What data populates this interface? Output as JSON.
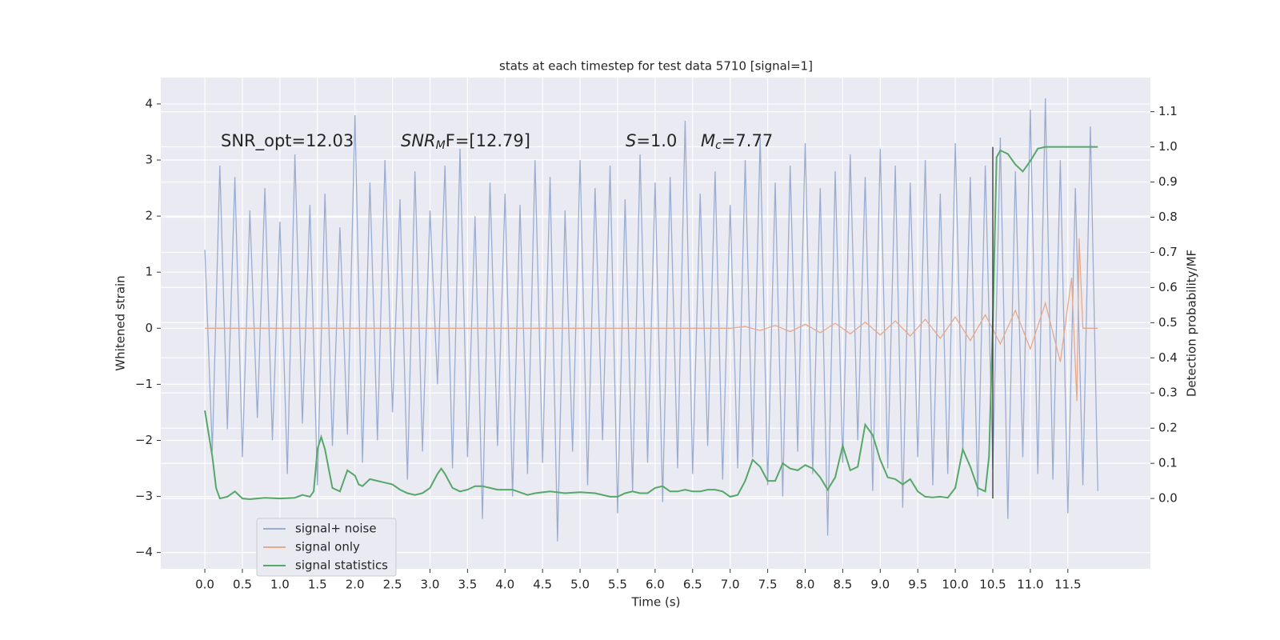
{
  "chart_data": {
    "type": "line",
    "title": "stats at each timestep for test data 5710 [signal=1]",
    "x_label": "Time (s)",
    "y_label": "Whitened strain",
    "y2_label": "Detection probability/MF",
    "annotations": [
      {
        "text": "SNR_opt=12.03"
      },
      {
        "italic": "SNR",
        "sub": "M",
        "text": "F=[12.79]"
      },
      {
        "italic": "S",
        "text": "=1.0"
      },
      {
        "italic": "M",
        "sub": "c",
        "text": "=7.77"
      }
    ],
    "xlim": [
      -0.587,
      12.6
    ],
    "ylim": [
      -4.29,
      4.47
    ],
    "y2lim": [
      -0.2,
      1.197
    ],
    "xticks": [
      {
        "value": 0,
        "label": "0.0"
      },
      0.5,
      {
        "value": 1,
        "label": "1.0"
      },
      1.5,
      {
        "value": 2,
        "label": "2.0"
      },
      2.5,
      {
        "value": 3,
        "label": "3.0"
      },
      3.5,
      {
        "value": 4,
        "label": "4.0"
      },
      4.5,
      {
        "value": 5,
        "label": "5.0"
      },
      5.5,
      {
        "value": 6,
        "label": "6.0"
      },
      6.5,
      {
        "value": 7,
        "label": "7.0"
      },
      7.5,
      {
        "value": 8,
        "label": "8.0"
      },
      8.5,
      {
        "value": 9,
        "label": "9.0"
      },
      9.5,
      {
        "value": 10,
        "label": "10.0"
      },
      10.5,
      {
        "value": 11,
        "label": "11.0"
      },
      11.5
    ],
    "yticks": [
      {
        "value": -4,
        "label": "−4"
      },
      {
        "value": -3,
        "label": "−3"
      },
      {
        "value": -2,
        "label": "−2"
      },
      {
        "value": -1,
        "label": "−1"
      },
      0,
      1,
      2,
      3,
      4
    ],
    "y2ticks": [
      {
        "value": 0,
        "label": "0.0"
      },
      0.1,
      0.2,
      0.3,
      0.4,
      0.5,
      0.6,
      0.7,
      0.8,
      0.9,
      {
        "value": 1,
        "label": "1.0"
      },
      1.1
    ],
    "grid": true,
    "legend": "lower left",
    "vline": {
      "x": 10.5,
      "y2": [
        0,
        1
      ],
      "color": "#333333"
    },
    "series": [
      {
        "name": "signal+ noise",
        "color": "#9aadd1",
        "x": [
          0,
          0.1,
          0.2,
          0.3,
          0.4,
          0.5,
          0.6,
          0.7,
          0.8,
          0.9,
          1,
          1.1,
          1.2,
          1.3,
          1.4,
          1.5,
          1.6,
          1.7,
          1.8,
          1.9,
          2,
          2.1,
          2.2,
          2.3,
          2.4,
          2.5,
          2.6,
          2.7,
          2.8,
          2.9,
          3,
          3.1,
          3.2,
          3.3,
          3.4,
          3.5,
          3.6,
          3.7,
          3.8,
          3.9,
          4,
          4.1,
          4.2,
          4.3,
          4.4,
          4.5,
          4.6,
          4.7,
          4.8,
          4.9,
          5,
          5.1,
          5.2,
          5.3,
          5.4,
          5.5,
          5.6,
          5.7,
          5.8,
          5.9,
          6,
          6.1,
          6.2,
          6.3,
          6.4,
          6.5,
          6.6,
          6.7,
          6.8,
          6.9,
          7,
          7.1,
          7.2,
          7.3,
          7.4,
          7.5,
          7.6,
          7.7,
          7.8,
          7.9,
          8,
          8.1,
          8.2,
          8.3,
          8.4,
          8.5,
          8.6,
          8.7,
          8.8,
          8.9,
          9,
          9.1,
          9.2,
          9.3,
          9.4,
          9.5,
          9.6,
          9.7,
          9.8,
          9.9,
          10,
          10.1,
          10.2,
          10.3,
          10.4,
          10.5,
          10.6,
          10.7,
          10.8,
          10.9,
          11,
          11.1,
          11.2,
          11.3,
          11.4,
          11.5,
          11.6,
          11.7,
          11.8,
          11.9
        ],
        "values": [
          1.4,
          -2.2,
          2.9,
          -1.8,
          2.7,
          -2.3,
          2.1,
          -1.6,
          2.5,
          -2.0,
          1.9,
          -2.6,
          3.1,
          -1.7,
          2.2,
          -2.8,
          2.4,
          -2.1,
          1.8,
          -1.9,
          3.8,
          -2.4,
          2.6,
          -2.0,
          3.0,
          -1.5,
          2.3,
          -2.7,
          2.8,
          -2.2,
          2.1,
          -1.0,
          2.9,
          -2.5,
          3.2,
          -2.3,
          2.0,
          -3.4,
          2.6,
          -2.1,
          2.4,
          -3.0,
          2.2,
          -2.6,
          3.0,
          -2.4,
          2.7,
          -3.8,
          2.1,
          -2.2,
          3.0,
          -2.8,
          2.5,
          -2.0,
          2.9,
          -3.3,
          2.3,
          -2.9,
          3.1,
          -2.4,
          2.6,
          -3.1,
          2.7,
          -2.5,
          3.7,
          -2.6,
          2.4,
          -2.1,
          2.8,
          -2.7,
          2.2,
          -2.5,
          3.0,
          -2.3,
          3.4,
          -2.8,
          2.6,
          -3.0,
          2.9,
          -2.2,
          3.3,
          -2.6,
          2.5,
          -3.7,
          2.8,
          -2.4,
          3.1,
          -2.0,
          2.7,
          -2.9,
          3.2,
          -2.5,
          2.9,
          -3.2,
          2.6,
          -2.3,
          3.0,
          -2.8,
          2.4,
          -2.6,
          3.3,
          -2.2,
          2.7,
          -3.0,
          2.9,
          -2.5,
          3.4,
          -3.4,
          2.8,
          -2.3,
          3.9,
          -2.6,
          4.1,
          -2.7,
          3.0,
          -3.3,
          2.5,
          -2.8,
          3.6,
          -2.9
        ]
      },
      {
        "name": "signal only",
        "color": "#e6a98c",
        "x": [
          0,
          7.0,
          7.2,
          7.4,
          7.6,
          7.8,
          8.0,
          8.2,
          8.4,
          8.6,
          8.8,
          9.0,
          9.2,
          9.4,
          9.6,
          9.8,
          10.0,
          10.2,
          10.4,
          10.6,
          10.8,
          11.0,
          11.2,
          11.4,
          11.55,
          11.62,
          11.65,
          11.7,
          11.9
        ],
        "values": [
          0,
          0,
          0.03,
          -0.04,
          0.05,
          -0.06,
          0.07,
          -0.08,
          0.09,
          -0.1,
          0.11,
          -0.12,
          0.13,
          -0.14,
          0.16,
          -0.18,
          0.2,
          -0.22,
          0.24,
          -0.28,
          0.32,
          -0.37,
          0.45,
          -0.6,
          0.9,
          -1.3,
          1.6,
          0,
          0
        ]
      },
      {
        "name": "signal statistics",
        "color": "#55a868",
        "axis": "y2",
        "x": [
          0,
          0.1,
          0.15,
          0.2,
          0.3,
          0.4,
          0.5,
          0.6,
          0.8,
          1.0,
          1.2,
          1.3,
          1.4,
          1.45,
          1.5,
          1.55,
          1.6,
          1.7,
          1.8,
          1.9,
          2.0,
          2.05,
          2.1,
          2.2,
          2.3,
          2.4,
          2.5,
          2.6,
          2.7,
          2.8,
          2.9,
          3.0,
          3.1,
          3.15,
          3.2,
          3.3,
          3.4,
          3.5,
          3.6,
          3.7,
          3.8,
          3.9,
          4.1,
          4.3,
          4.4,
          4.6,
          4.8,
          5.0,
          5.2,
          5.4,
          5.5,
          5.6,
          5.7,
          5.8,
          5.9,
          6.0,
          6.1,
          6.2,
          6.3,
          6.4,
          6.5,
          6.6,
          6.7,
          6.8,
          6.9,
          7.0,
          7.1,
          7.2,
          7.3,
          7.4,
          7.5,
          7.6,
          7.7,
          7.8,
          7.9,
          8.0,
          8.1,
          8.2,
          8.3,
          8.4,
          8.5,
          8.6,
          8.7,
          8.8,
          8.9,
          9.0,
          9.1,
          9.2,
          9.3,
          9.4,
          9.5,
          9.6,
          9.7,
          9.8,
          9.9,
          10.0,
          10.1,
          10.2,
          10.3,
          10.4,
          10.45,
          10.5,
          10.55,
          10.6,
          10.7,
          10.8,
          10.9,
          11.0,
          11.1,
          11.2,
          11.5,
          11.9
        ],
        "values": [
          0.25,
          0.12,
          0.03,
          0.0,
          0.005,
          0.02,
          0.0,
          -0.002,
          0.002,
          0.0,
          0.002,
          0.01,
          0.005,
          0.02,
          0.14,
          0.175,
          0.14,
          0.03,
          0.02,
          0.08,
          0.065,
          0.04,
          0.035,
          0.055,
          0.05,
          0.045,
          0.04,
          0.025,
          0.015,
          0.01,
          0.015,
          0.03,
          0.07,
          0.085,
          0.07,
          0.03,
          0.02,
          0.025,
          0.035,
          0.035,
          0.03,
          0.025,
          0.025,
          0.01,
          0.015,
          0.02,
          0.015,
          0.018,
          0.015,
          0.005,
          0.005,
          0.015,
          0.02,
          0.015,
          0.015,
          0.03,
          0.035,
          0.02,
          0.02,
          0.025,
          0.02,
          0.02,
          0.025,
          0.025,
          0.02,
          0.005,
          0.01,
          0.05,
          0.11,
          0.09,
          0.05,
          0.05,
          0.1,
          0.085,
          0.08,
          0.095,
          0.085,
          0.06,
          0.025,
          0.06,
          0.15,
          0.08,
          0.09,
          0.21,
          0.18,
          0.11,
          0.06,
          0.055,
          0.04,
          0.055,
          0.02,
          0.005,
          0.003,
          0.005,
          0.002,
          0.03,
          0.14,
          0.09,
          0.03,
          0.02,
          0.12,
          0.5,
          0.97,
          0.99,
          0.98,
          0.95,
          0.93,
          0.96,
          0.995,
          1.0,
          1.0,
          1.0
        ]
      }
    ]
  }
}
